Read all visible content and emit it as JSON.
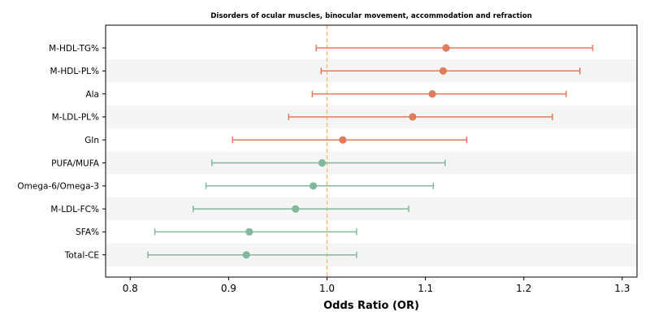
{
  "chart_data": {
    "type": "forest",
    "title": "Disorders of ocular muscles, binocular movement, accommodation and refraction",
    "xlabel": "Odds Ratio (OR)",
    "ylabel": "",
    "xlim": [
      0.775,
      1.315
    ],
    "xticks": [
      0.8,
      0.9,
      1.0,
      1.1,
      1.2,
      1.3
    ],
    "xtick_labels": [
      "0.8",
      "0.9",
      "1.0",
      "1.1",
      "1.2",
      "1.3"
    ],
    "reference_line": 1.0,
    "grid": false,
    "row_banding": true,
    "colors": {
      "risk": "#e07b5c",
      "protective": "#82b89c",
      "reference": "#f0c27b",
      "band": "#f5f5f5"
    },
    "rows": [
      {
        "label": "M-HDL-TG%",
        "or": 1.121,
        "ci_low": 0.989,
        "ci_high": 1.27,
        "group": "risk"
      },
      {
        "label": "M-HDL-PL%",
        "or": 1.118,
        "ci_low": 0.994,
        "ci_high": 1.257,
        "group": "risk"
      },
      {
        "label": "Ala",
        "or": 1.107,
        "ci_low": 0.985,
        "ci_high": 1.243,
        "group": "risk"
      },
      {
        "label": "M-LDL-PL%",
        "or": 1.087,
        "ci_low": 0.961,
        "ci_high": 1.229,
        "group": "risk"
      },
      {
        "label": "Gln",
        "or": 1.016,
        "ci_low": 0.904,
        "ci_high": 1.142,
        "group": "risk"
      },
      {
        "label": "PUFA/MUFA",
        "or": 0.995,
        "ci_low": 0.883,
        "ci_high": 1.12,
        "group": "protective"
      },
      {
        "label": "Omega-6/Omega-3",
        "or": 0.986,
        "ci_low": 0.877,
        "ci_high": 1.108,
        "group": "protective"
      },
      {
        "label": "M-LDL-FC%",
        "or": 0.968,
        "ci_low": 0.864,
        "ci_high": 1.083,
        "group": "protective"
      },
      {
        "label": "SFA%",
        "or": 0.921,
        "ci_low": 0.825,
        "ci_high": 1.03,
        "group": "protective"
      },
      {
        "label": "Total-CE",
        "or": 0.918,
        "ci_low": 0.818,
        "ci_high": 1.03,
        "group": "protective"
      }
    ]
  }
}
